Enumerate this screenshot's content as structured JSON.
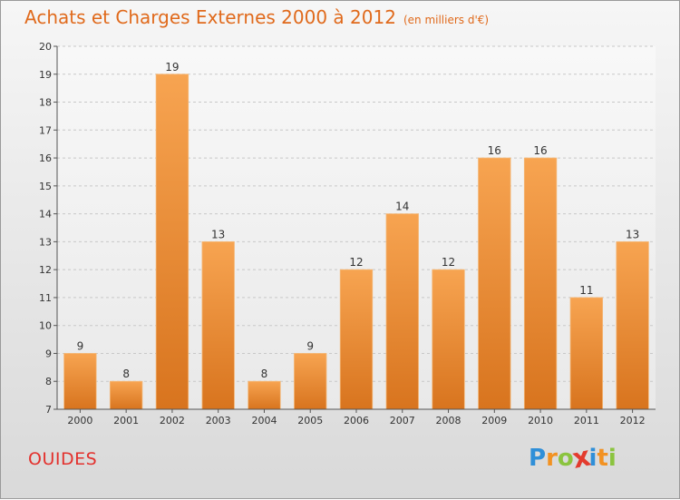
{
  "header": {
    "title": "Achats et Charges Externes 2000 à 2012",
    "unit": "(en milliers d'€)"
  },
  "footer": {
    "town": "OUIDES",
    "brand_letters": [
      {
        "char": "P",
        "color": "#2f8fd8"
      },
      {
        "char": "r",
        "color": "#f29222"
      },
      {
        "char": "o",
        "color": "#8bc43f"
      },
      {
        "char": "x",
        "color": "#e33b2e"
      },
      {
        "char": "i",
        "color": "#2f8fd8"
      },
      {
        "char": "t",
        "color": "#f29222"
      },
      {
        "char": "i",
        "color": "#8bc43f"
      }
    ]
  },
  "colors": {
    "bar_top": "#f7a451",
    "bar_bottom": "#d8741e",
    "title": "#e06a1c",
    "town": "#e3312d"
  },
  "chart_data": {
    "type": "bar",
    "title": "Achats et Charges Externes 2000 à 2012",
    "subtitle": "(en milliers d'€)",
    "categories": [
      "2000",
      "2001",
      "2002",
      "2003",
      "2004",
      "2005",
      "2006",
      "2007",
      "2008",
      "2009",
      "2010",
      "2011",
      "2012"
    ],
    "values": [
      9,
      8,
      19,
      13,
      8,
      9,
      12,
      14,
      12,
      16,
      16,
      11,
      13
    ],
    "ylim": [
      7,
      20
    ],
    "yticks": [
      7,
      8,
      9,
      10,
      11,
      12,
      13,
      14,
      15,
      16,
      17,
      18,
      19,
      20
    ],
    "grid": "horizontal-dashed",
    "xlabel": "",
    "ylabel": ""
  }
}
